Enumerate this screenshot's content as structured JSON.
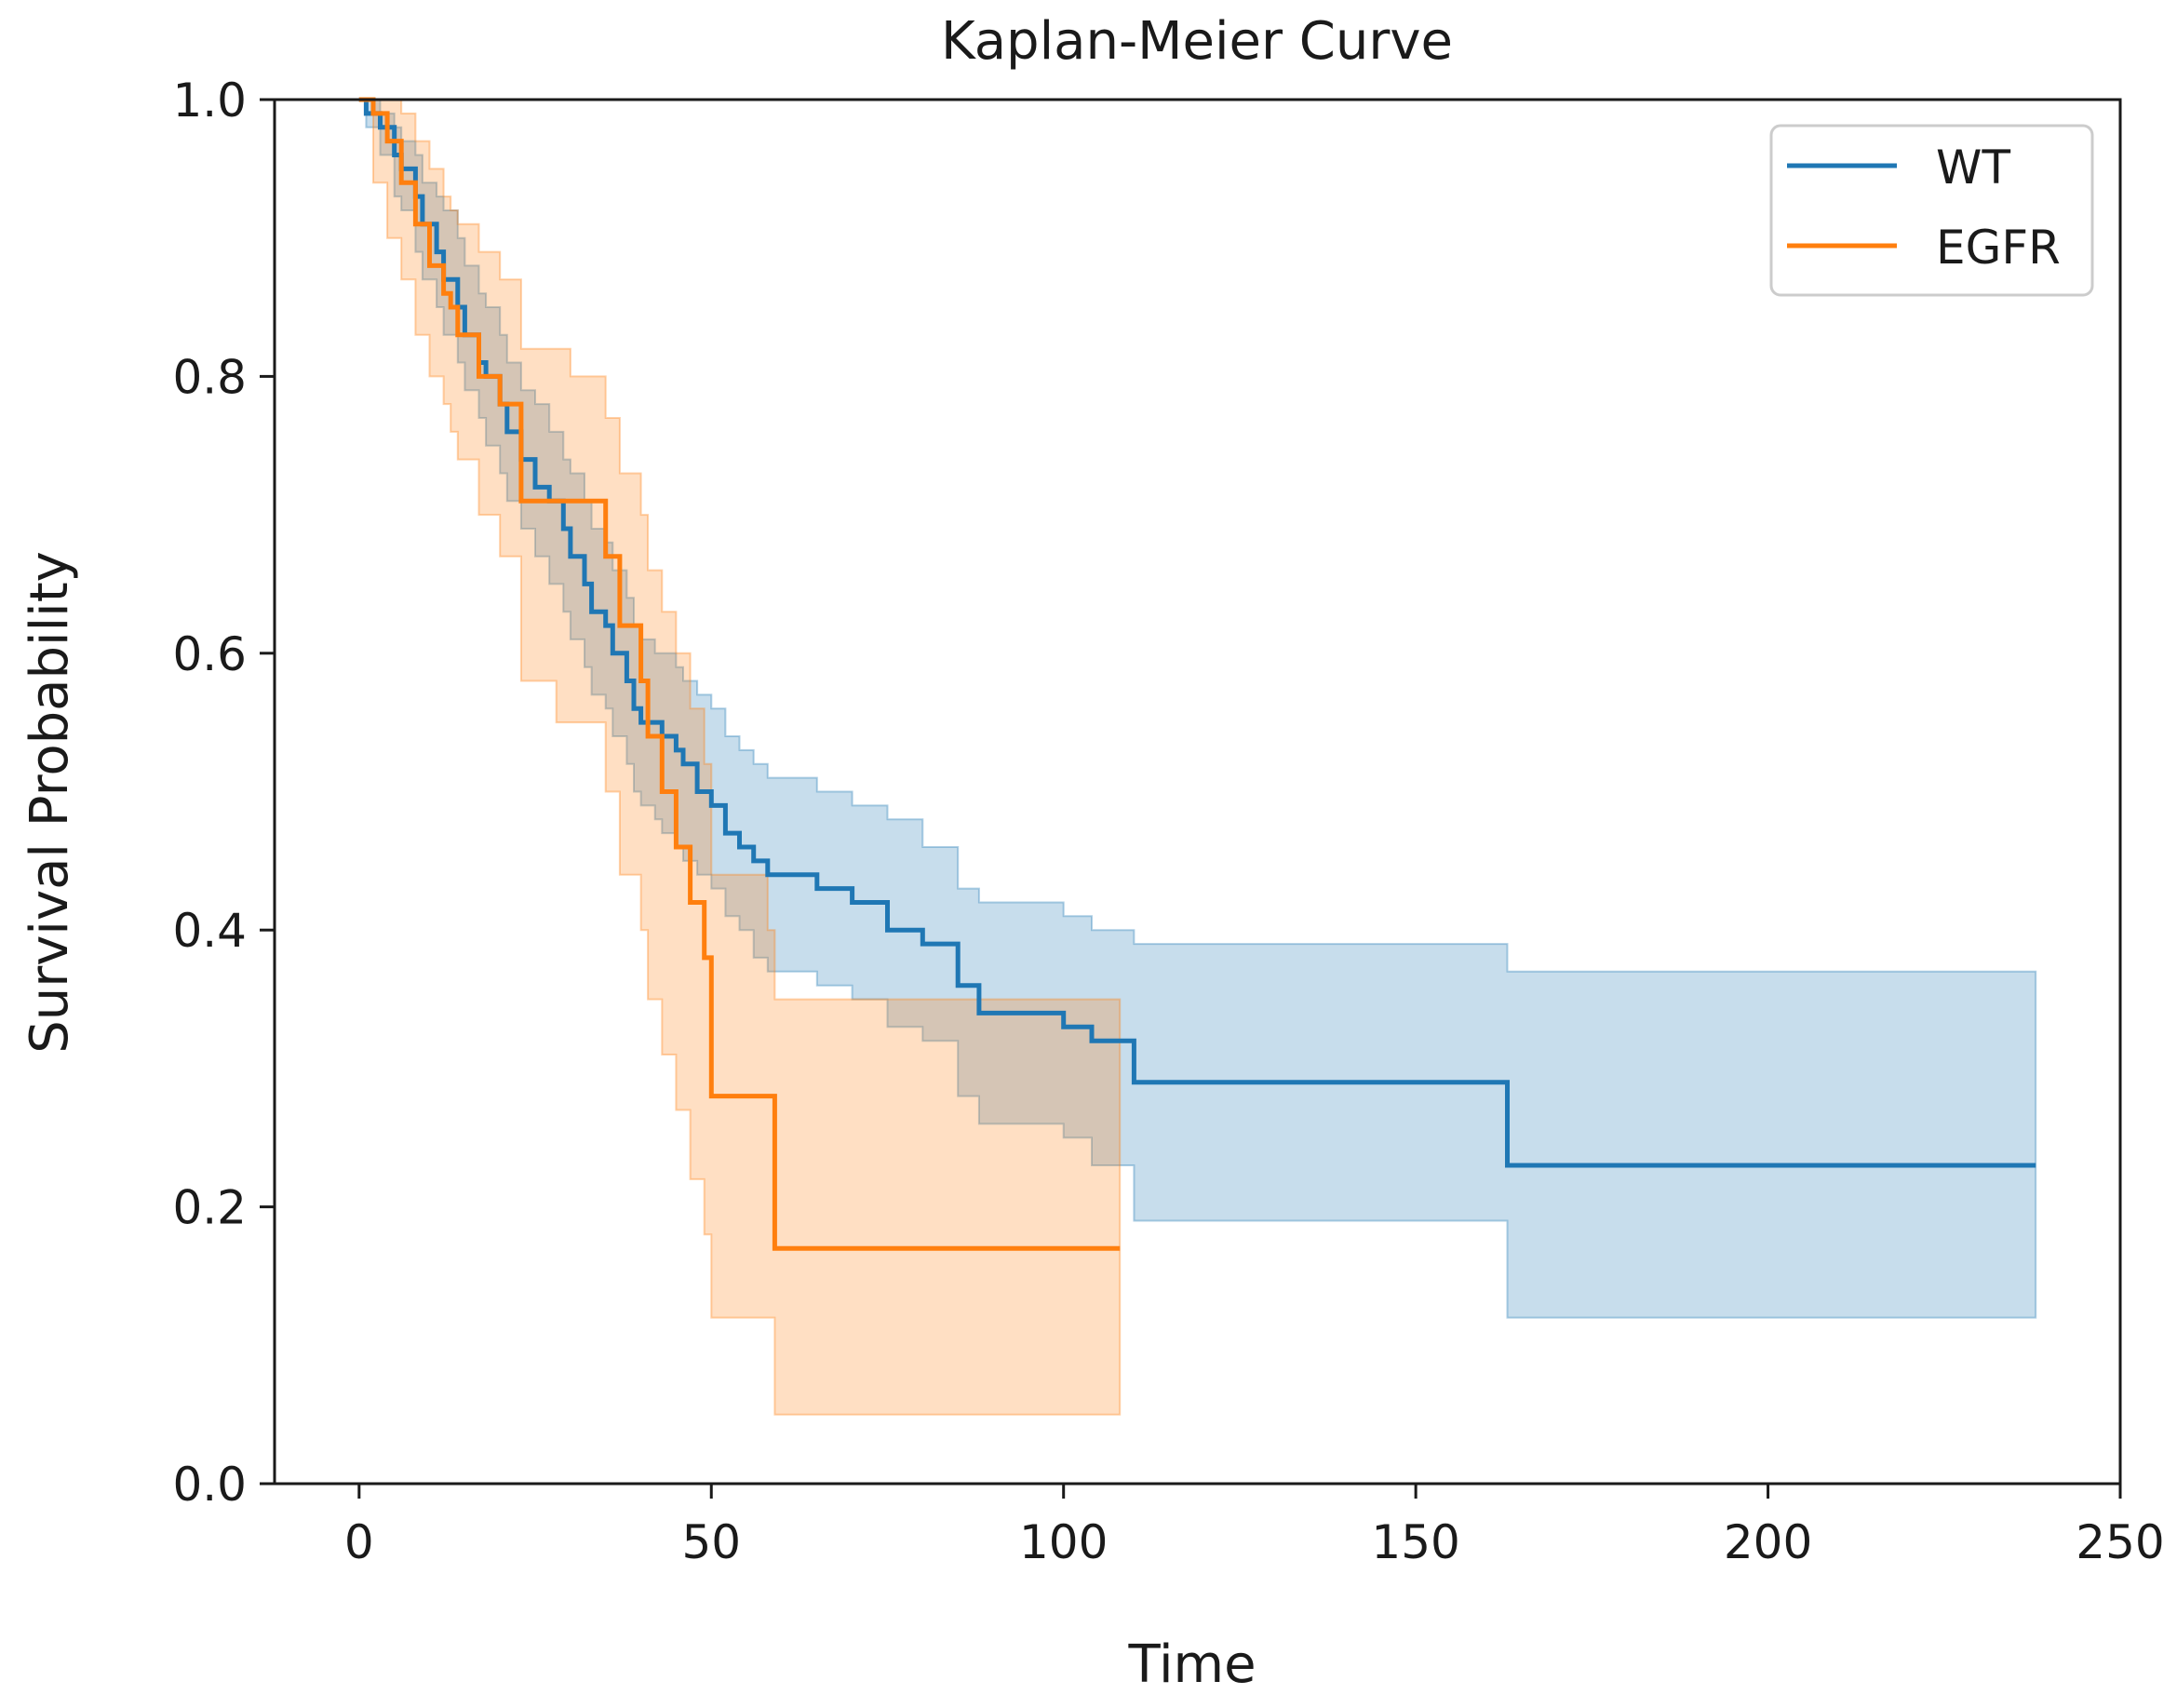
{
  "chart_data": {
    "type": "line",
    "subtype": "kaplan-meier step",
    "title": "Kaplan-Meier Curve",
    "xlabel": "Time",
    "ylabel": "Survival Probability",
    "xlim": [
      -12,
      250
    ],
    "ylim": [
      0.0,
      1.0
    ],
    "xticks": [
      0,
      50,
      100,
      150,
      200,
      250
    ],
    "xtick_labels": [
      "0",
      "50",
      "100",
      "150",
      "200",
      "250"
    ],
    "yticks": [
      0.0,
      0.2,
      0.4,
      0.6,
      0.8,
      1.0
    ],
    "ytick_labels": [
      "0.0",
      "0.2",
      "0.4",
      "0.6",
      "0.8",
      "1.0"
    ],
    "grid": false,
    "legend_position": "top-right",
    "series": [
      {
        "name": "WT",
        "color": "#1f77b4",
        "band_color": "#1f77b4",
        "x": [
          0,
          1,
          3,
          5,
          6,
          8,
          9,
          11,
          12,
          14,
          15,
          17,
          18,
          20,
          21,
          23,
          25,
          27,
          29,
          30,
          32,
          33,
          35,
          36,
          38,
          39,
          40,
          42,
          43,
          45,
          46,
          48,
          50,
          52,
          54,
          56,
          58,
          60,
          65,
          70,
          75,
          80,
          85,
          88,
          100,
          104,
          110,
          163,
          238
        ],
        "y": [
          1.0,
          0.99,
          0.98,
          0.96,
          0.95,
          0.93,
          0.91,
          0.89,
          0.87,
          0.85,
          0.83,
          0.81,
          0.8,
          0.78,
          0.76,
          0.74,
          0.72,
          0.71,
          0.69,
          0.67,
          0.65,
          0.63,
          0.62,
          0.6,
          0.58,
          0.56,
          0.55,
          0.55,
          0.54,
          0.53,
          0.52,
          0.5,
          0.49,
          0.47,
          0.46,
          0.45,
          0.44,
          0.44,
          0.43,
          0.42,
          0.4,
          0.39,
          0.36,
          0.34,
          0.33,
          0.32,
          0.29,
          0.23,
          0.23
        ],
        "ci_lower": [
          1.0,
          0.98,
          0.96,
          0.93,
          0.92,
          0.89,
          0.87,
          0.85,
          0.83,
          0.81,
          0.79,
          0.77,
          0.75,
          0.73,
          0.71,
          0.69,
          0.67,
          0.65,
          0.63,
          0.61,
          0.59,
          0.57,
          0.56,
          0.54,
          0.52,
          0.5,
          0.49,
          0.48,
          0.47,
          0.46,
          0.45,
          0.44,
          0.43,
          0.41,
          0.4,
          0.38,
          0.37,
          0.37,
          0.36,
          0.35,
          0.33,
          0.32,
          0.28,
          0.26,
          0.25,
          0.23,
          0.19,
          0.12,
          0.12
        ],
        "ci_upper": [
          1.0,
          1.0,
          0.99,
          0.98,
          0.97,
          0.96,
          0.94,
          0.93,
          0.92,
          0.9,
          0.88,
          0.86,
          0.85,
          0.83,
          0.81,
          0.79,
          0.78,
          0.76,
          0.74,
          0.73,
          0.71,
          0.69,
          0.68,
          0.66,
          0.64,
          0.62,
          0.61,
          0.6,
          0.6,
          0.59,
          0.58,
          0.57,
          0.56,
          0.54,
          0.53,
          0.52,
          0.51,
          0.51,
          0.5,
          0.49,
          0.48,
          0.46,
          0.43,
          0.42,
          0.41,
          0.4,
          0.39,
          0.37,
          0.37
        ]
      },
      {
        "name": "EGFR",
        "color": "#ff7f0e",
        "band_color": "#ff7f0e",
        "x": [
          0,
          2,
          4,
          6,
          8,
          10,
          12,
          13,
          14,
          17,
          20,
          23,
          28,
          30,
          35,
          37,
          40,
          41,
          43,
          45,
          47,
          49,
          50,
          58,
          59,
          108
        ],
        "y": [
          1.0,
          0.99,
          0.97,
          0.94,
          0.91,
          0.88,
          0.86,
          0.85,
          0.83,
          0.8,
          0.78,
          0.71,
          0.71,
          0.71,
          0.67,
          0.62,
          0.58,
          0.54,
          0.5,
          0.46,
          0.42,
          0.38,
          0.28,
          0.28,
          0.17,
          0.17
        ],
        "ci_lower": [
          1.0,
          0.94,
          0.9,
          0.87,
          0.83,
          0.8,
          0.78,
          0.76,
          0.74,
          0.7,
          0.67,
          0.58,
          0.55,
          0.55,
          0.5,
          0.44,
          0.4,
          0.35,
          0.31,
          0.27,
          0.22,
          0.18,
          0.12,
          0.12,
          0.05,
          0.05
        ],
        "ci_upper": [
          1.0,
          1.0,
          1.0,
          0.99,
          0.97,
          0.95,
          0.93,
          0.92,
          0.91,
          0.89,
          0.87,
          0.82,
          0.82,
          0.8,
          0.77,
          0.73,
          0.7,
          0.66,
          0.63,
          0.6,
          0.56,
          0.52,
          0.44,
          0.4,
          0.35,
          0.35
        ]
      }
    ]
  }
}
